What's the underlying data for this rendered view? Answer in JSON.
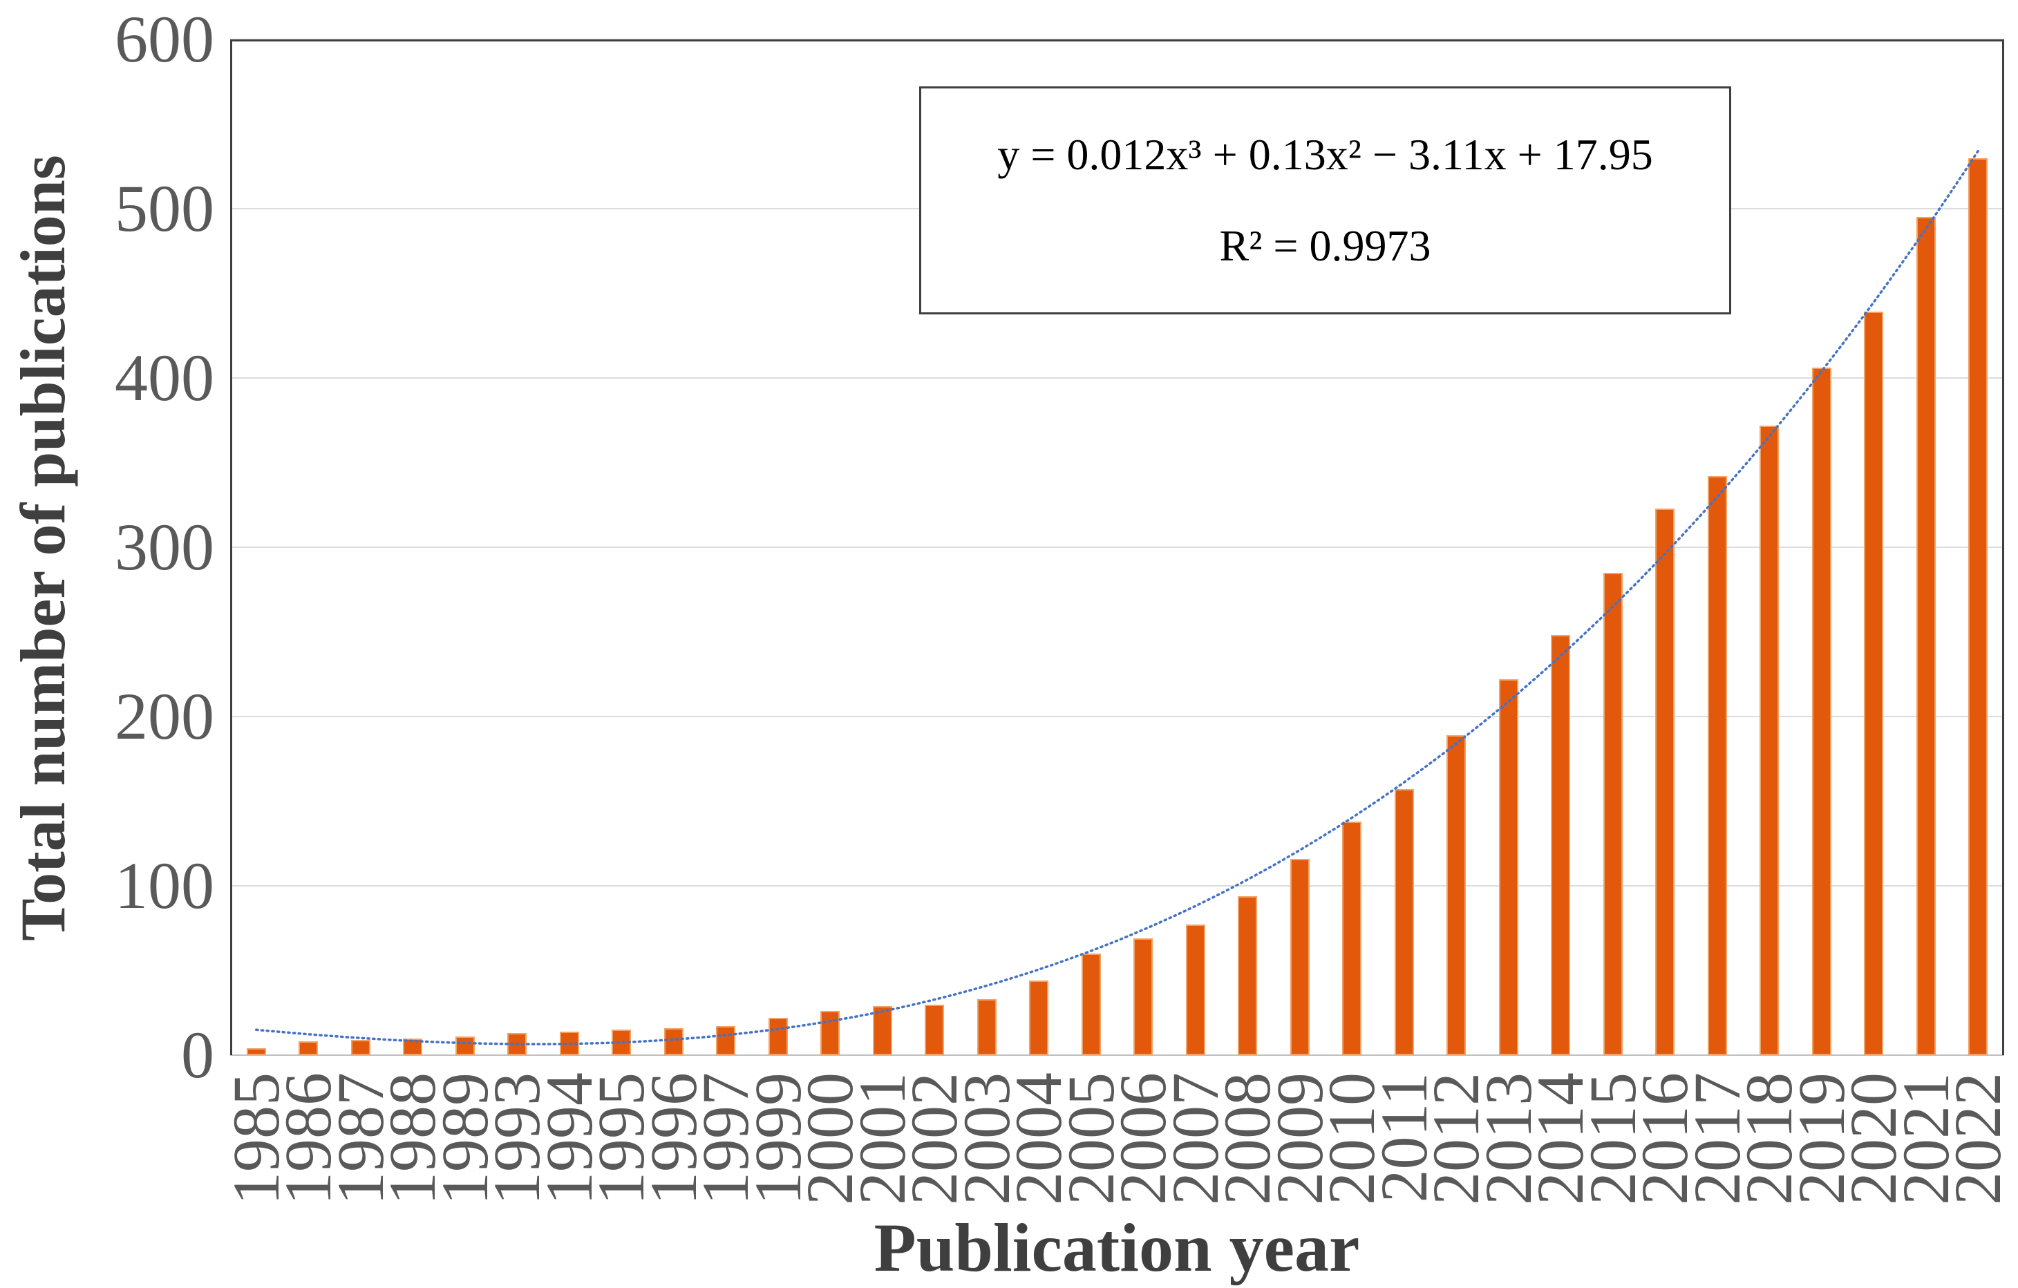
{
  "figure": {
    "y_axis_title": "Total number of publications",
    "x_axis_title": "Publication year",
    "annotation": {
      "equation": "y = 0.012x³ + 0.13x² − 3.11x + 17.95",
      "r_squared": "R² = 0.9973"
    }
  },
  "chart_data": {
    "type": "bar",
    "title": "",
    "xlabel": "Publication year",
    "ylabel": "Total number of publications",
    "categories": [
      "1985",
      "1986",
      "1987",
      "1988",
      "1989",
      "1993",
      "1994",
      "1995",
      "1996",
      "1997",
      "1999",
      "2000",
      "2001",
      "2002",
      "2003",
      "2004",
      "2005",
      "2006",
      "2007",
      "2008",
      "2009",
      "2010",
      "2011",
      "2012",
      "2013",
      "2014",
      "2015",
      "2016",
      "2017",
      "2018",
      "2019",
      "2020",
      "2021",
      "2022"
    ],
    "values": [
      4,
      8,
      9,
      10,
      11,
      13,
      14,
      15,
      16,
      17,
      22,
      26,
      29,
      30,
      33,
      44,
      60,
      69,
      77,
      94,
      116,
      138,
      157,
      189,
      222,
      248,
      285,
      323,
      342,
      372,
      406,
      439,
      495,
      530
    ],
    "ylim": [
      0,
      600
    ],
    "y_ticks": [
      0,
      100,
      200,
      300,
      400,
      500,
      600
    ],
    "grid": "horizontal",
    "legend": "none",
    "bar_color": "#e2590c",
    "bar_border_color": "#f2a265",
    "trendline": {
      "type": "cubic_polynomial",
      "coefficients": {
        "a3": 0.012,
        "a2": 0.13,
        "a1": -3.11,
        "a0": 17.95
      },
      "r_squared": 0.9973,
      "color": "#4472c4",
      "style": "dotted",
      "x_domain_note": "x = category index 1..34"
    }
  }
}
